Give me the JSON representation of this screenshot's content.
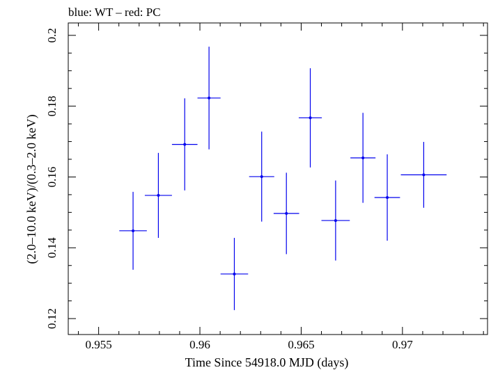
{
  "chart_data": {
    "type": "scatter",
    "title": "blue: WT – red: PC",
    "xlabel": "Time Since 54918.0 MJD (days)",
    "ylabel": "(2.0–10.0 keV)/(0.3–2.0 keV)",
    "xlim": [
      0.9535,
      0.9742
    ],
    "ylim": [
      0.1155,
      0.2035
    ],
    "xticks": [
      0.955,
      0.96,
      0.965,
      0.97
    ],
    "xtick_labels": [
      "0.955",
      "0.96",
      "0.965",
      "0.97"
    ],
    "yticks": [
      0.12,
      0.14,
      0.16,
      0.18,
      0.2
    ],
    "ytick_labels": [
      "0.12",
      "0.14",
      "0.16",
      "0.18",
      "0.2"
    ],
    "grid": false,
    "series": [
      {
        "color": "#0000ee",
        "points": [
          {
            "x": 0.9567,
            "xerr": 0.00068,
            "y": 0.1448,
            "yerr": 0.011
          },
          {
            "x": 0.95795,
            "xerr": 0.00067,
            "y": 0.1548,
            "yerr": 0.012
          },
          {
            "x": 0.95925,
            "xerr": 0.00063,
            "y": 0.1692,
            "yerr": 0.013
          },
          {
            "x": 0.96045,
            "xerr": 0.00057,
            "y": 0.1823,
            "yerr": 0.0145
          },
          {
            "x": 0.9617,
            "xerr": 0.00068,
            "y": 0.1326,
            "yerr": 0.0102
          },
          {
            "x": 0.96305,
            "xerr": 0.00062,
            "y": 0.1601,
            "yerr": 0.0127
          },
          {
            "x": 0.96427,
            "xerr": 0.00063,
            "y": 0.1497,
            "yerr": 0.0115
          },
          {
            "x": 0.96545,
            "xerr": 0.00057,
            "y": 0.1767,
            "yerr": 0.014
          },
          {
            "x": 0.9667,
            "xerr": 0.0007,
            "y": 0.1477,
            "yerr": 0.0113
          },
          {
            "x": 0.96805,
            "xerr": 0.00062,
            "y": 0.1654,
            "yerr": 0.0127
          },
          {
            "x": 0.96925,
            "xerr": 0.00063,
            "y": 0.1542,
            "yerr": 0.0122
          },
          {
            "x": 0.97105,
            "xerr": 0.00113,
            "y": 0.1606,
            "yerr": 0.0093
          }
        ]
      }
    ]
  }
}
